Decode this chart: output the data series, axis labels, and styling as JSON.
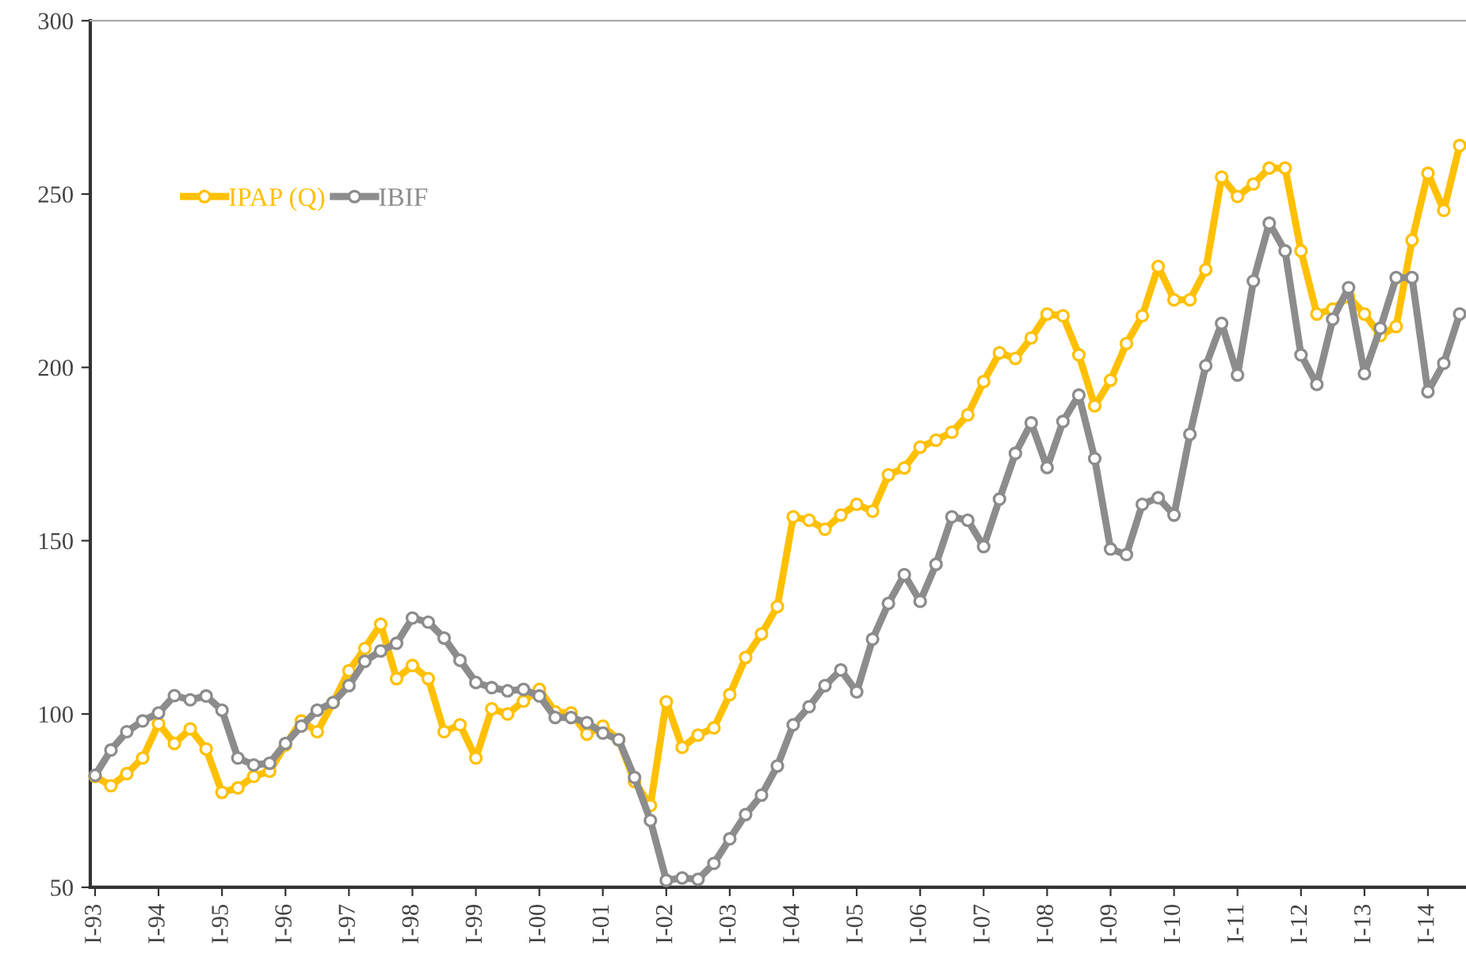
{
  "chart_data": {
    "type": "line",
    "categories": [
      "I-93",
      null,
      null,
      null,
      "I-94",
      null,
      null,
      null,
      "I-95",
      null,
      null,
      null,
      "I-96",
      null,
      null,
      null,
      "I-97",
      null,
      null,
      null,
      "I-98",
      null,
      null,
      null,
      "I-99",
      null,
      null,
      null,
      "I-00",
      null,
      null,
      null,
      "I-01",
      null,
      null,
      null,
      "I-02",
      null,
      null,
      null,
      "I-03",
      null,
      null,
      null,
      "I-04",
      null,
      null,
      null,
      "I-05",
      null,
      null,
      null,
      "I-06",
      null,
      null,
      null,
      "I-07",
      null,
      null,
      null,
      "I-08",
      null,
      null,
      null,
      "I-09",
      null,
      null,
      null,
      "I-10",
      null,
      null,
      null,
      "I-11",
      null,
      null,
      null,
      "I-12",
      null,
      null,
      null,
      "I-13",
      null,
      null,
      null,
      "I-14",
      null,
      null
    ],
    "series": [
      {
        "name": "IPAP (Q)",
        "color": "#ffc000",
        "values": [
          82,
          79.3,
          82.8,
          87.3,
          97.2,
          91.5,
          95.7,
          89.9,
          77.4,
          78.7,
          82,
          83.5,
          91.1,
          98,
          94.9,
          103.3,
          112.5,
          118.9,
          125.9,
          110.2,
          114,
          110.2,
          94.9,
          96.9,
          87.3,
          101.5,
          100,
          103.7,
          107.1,
          100.6,
          100.3,
          94.2,
          96.5,
          92.6,
          80.5,
          73.6,
          103.5,
          90.4,
          93.9,
          96,
          105.6,
          116.3,
          123.1,
          131,
          156.9,
          155.9,
          153.3,
          157.4,
          160.5,
          158.5,
          169,
          171,
          177,
          179,
          181.3,
          186.3,
          195.9,
          204.2,
          202.6,
          208.5,
          215.4,
          214.9,
          203.6,
          188.9,
          196.3,
          206.9,
          214.9,
          229.1,
          219.5,
          219.5,
          228.2,
          254.9,
          249.3,
          252.9,
          257.5,
          257.5,
          233.6,
          215.4,
          216.8,
          220.4,
          215.4,
          209.2,
          211.8,
          236.7,
          256,
          245.3,
          264
        ]
      },
      {
        "name": "IBIF",
        "color": "#8c8c8c",
        "values": [
          82.3,
          89.6,
          94.9,
          98,
          100.3,
          105.3,
          104.1,
          105.2,
          101.1,
          87.3,
          85.3,
          85.8,
          91.5,
          96.5,
          101.1,
          103.3,
          108.2,
          115.2,
          118.2,
          120.4,
          127.7,
          126.5,
          121.9,
          115.5,
          109.1,
          107.6,
          106.7,
          107.1,
          105.2,
          99,
          99,
          97.5,
          94.5,
          92.6,
          81.7,
          69.3,
          52,
          52.7,
          52.3,
          56.9,
          64,
          71,
          76.6,
          85,
          96.9,
          102.1,
          108.2,
          112.7,
          106.4,
          121.6,
          131.9,
          140.2,
          132.5,
          143.2,
          156.9,
          155.9,
          148.3,
          162,
          175.2,
          184,
          171.1,
          184.4,
          192,
          173.7,
          147.6,
          146,
          160.5,
          162.4,
          157.4,
          180.7,
          200.5,
          212.7,
          197.8,
          224.9,
          241.6,
          233.6,
          203.6,
          195.1,
          213.9,
          223,
          198.2,
          211.3,
          225.9,
          225.9,
          193,
          201.2,
          215.4
        ]
      }
    ],
    "ylim": [
      50,
      300
    ],
    "yticks": [
      50,
      100,
      150,
      200,
      250,
      300
    ],
    "marker": "circle",
    "line_style": "solid",
    "legend": "top left"
  }
}
